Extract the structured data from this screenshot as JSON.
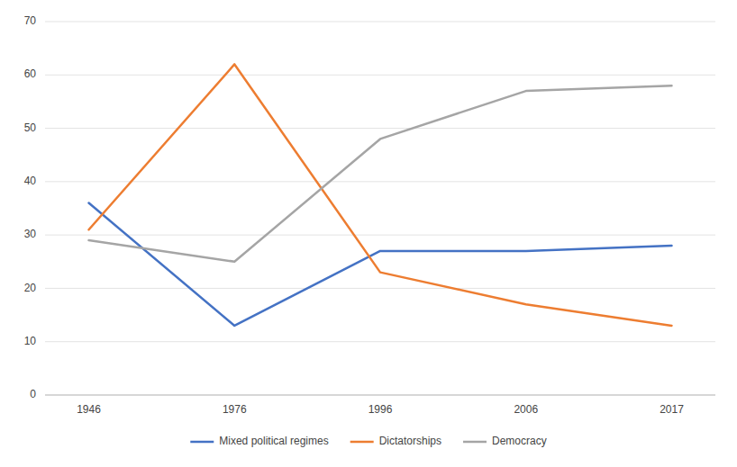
{
  "chart_data": {
    "type": "line",
    "categories": [
      "1946",
      "1976",
      "1996",
      "2006",
      "2017"
    ],
    "series": [
      {
        "name": "Mixed political regimes",
        "color": "#4472c4",
        "values": [
          36,
          13,
          27,
          27,
          28
        ]
      },
      {
        "name": "Dictatorships",
        "color": "#ed7d31",
        "values": [
          31,
          62,
          23,
          17,
          13
        ]
      },
      {
        "name": "Democracy",
        "color": "#a5a5a5",
        "values": [
          29,
          25,
          48,
          57,
          58
        ]
      }
    ],
    "ylim": [
      0,
      70
    ],
    "yticks": [
      0,
      10,
      20,
      30,
      40,
      50,
      60,
      70
    ],
    "grid": true,
    "legend": "bottom"
  }
}
